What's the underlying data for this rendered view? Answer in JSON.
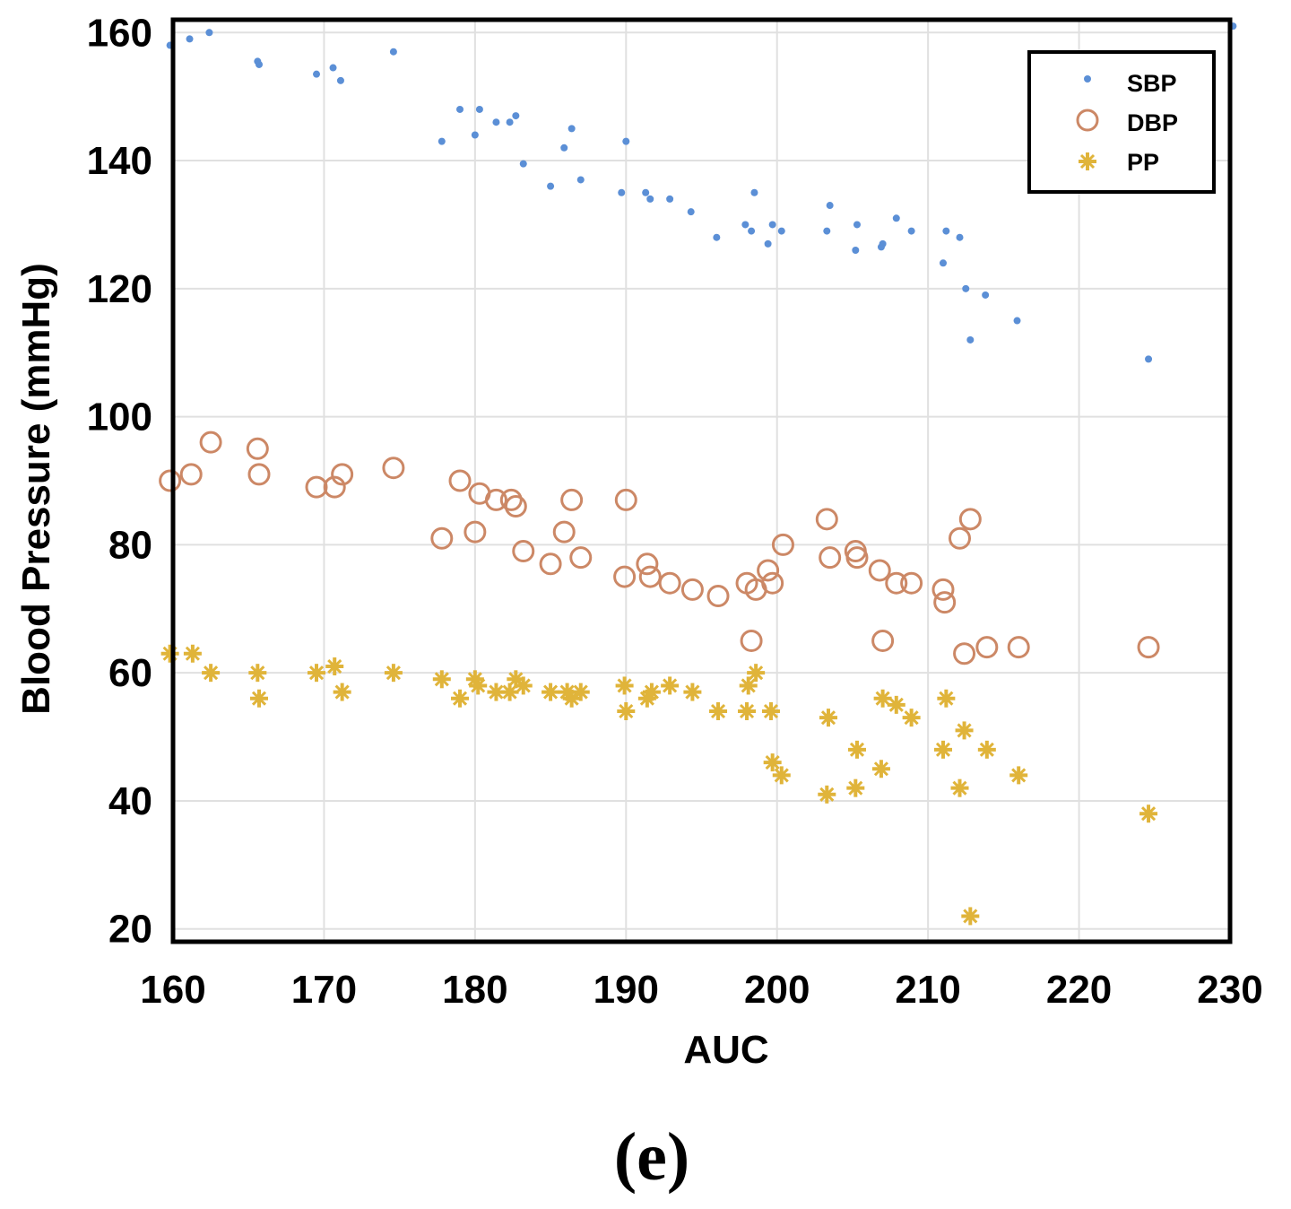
{
  "chart_data": {
    "type": "scatter",
    "title": "",
    "xlabel": "AUC",
    "ylabel": "Blood Pressure (mmHg)",
    "xlim": [
      160,
      230
    ],
    "ylim": [
      18,
      162
    ],
    "xticks": [
      160,
      170,
      180,
      190,
      200,
      210,
      220,
      230
    ],
    "yticks": [
      20,
      40,
      60,
      80,
      100,
      120,
      140,
      160
    ],
    "grid": true,
    "legend_position": "top-right",
    "series": [
      {
        "name": "SBP",
        "marker": "dot",
        "color": "#5b8fd6",
        "points": [
          [
            159.8,
            158
          ],
          [
            161.1,
            159
          ],
          [
            162.4,
            160
          ],
          [
            165.6,
            155.5
          ],
          [
            165.7,
            155
          ],
          [
            169.5,
            153.5
          ],
          [
            170.6,
            154.5
          ],
          [
            171.1,
            152.5
          ],
          [
            174.6,
            157
          ],
          [
            177.8,
            143
          ],
          [
            179.0,
            148
          ],
          [
            180.0,
            144
          ],
          [
            180.3,
            148
          ],
          [
            181.4,
            146
          ],
          [
            182.3,
            146
          ],
          [
            182.7,
            147
          ],
          [
            183.2,
            139.5
          ],
          [
            185.0,
            136
          ],
          [
            185.9,
            142
          ],
          [
            186.4,
            145
          ],
          [
            187.0,
            137
          ],
          [
            189.7,
            135
          ],
          [
            190.0,
            143
          ],
          [
            191.3,
            135
          ],
          [
            191.6,
            134
          ],
          [
            192.9,
            134
          ],
          [
            194.3,
            132
          ],
          [
            196.0,
            128
          ],
          [
            197.9,
            130
          ],
          [
            198.3,
            129
          ],
          [
            198.5,
            135
          ],
          [
            199.4,
            127
          ],
          [
            199.7,
            130
          ],
          [
            200.3,
            129
          ],
          [
            203.3,
            129
          ],
          [
            203.5,
            133
          ],
          [
            205.2,
            126
          ],
          [
            205.3,
            130
          ],
          [
            206.9,
            126.5
          ],
          [
            207.0,
            127
          ],
          [
            207.9,
            131
          ],
          [
            208.9,
            129
          ],
          [
            211.0,
            124
          ],
          [
            211.2,
            129
          ],
          [
            212.1,
            128
          ],
          [
            212.5,
            120
          ],
          [
            212.8,
            112
          ],
          [
            213.8,
            119
          ],
          [
            215.9,
            115
          ],
          [
            224.6,
            109
          ],
          [
            230.2,
            161
          ]
        ]
      },
      {
        "name": "DBP",
        "marker": "circle",
        "color": "#cc8866",
        "points": [
          [
            159.8,
            90
          ],
          [
            161.2,
            91
          ],
          [
            162.5,
            96
          ],
          [
            165.6,
            95
          ],
          [
            165.7,
            91
          ],
          [
            169.5,
            89
          ],
          [
            170.7,
            89
          ],
          [
            171.2,
            91
          ],
          [
            174.6,
            92
          ],
          [
            177.8,
            81
          ],
          [
            179.0,
            90
          ],
          [
            180.0,
            82
          ],
          [
            180.3,
            88
          ],
          [
            181.4,
            87
          ],
          [
            182.4,
            87
          ],
          [
            182.7,
            86
          ],
          [
            183.2,
            79
          ],
          [
            185.0,
            77
          ],
          [
            185.9,
            82
          ],
          [
            186.4,
            87
          ],
          [
            187.0,
            78
          ],
          [
            189.9,
            75
          ],
          [
            190.0,
            87
          ],
          [
            191.4,
            77
          ],
          [
            191.6,
            75
          ],
          [
            192.9,
            74
          ],
          [
            194.4,
            73
          ],
          [
            196.1,
            72
          ],
          [
            198.0,
            74
          ],
          [
            198.3,
            65
          ],
          [
            198.6,
            73
          ],
          [
            199.4,
            76
          ],
          [
            199.7,
            74
          ],
          [
            200.4,
            80
          ],
          [
            203.3,
            84
          ],
          [
            203.5,
            78
          ],
          [
            205.2,
            79
          ],
          [
            205.3,
            78
          ],
          [
            206.8,
            76
          ],
          [
            207.0,
            65
          ],
          [
            207.9,
            74
          ],
          [
            208.9,
            74
          ],
          [
            211.0,
            73
          ],
          [
            211.1,
            71
          ],
          [
            212.1,
            81
          ],
          [
            212.4,
            63
          ],
          [
            212.8,
            84
          ],
          [
            213.9,
            64
          ],
          [
            216.0,
            64
          ],
          [
            224.6,
            64
          ]
        ]
      },
      {
        "name": "PP",
        "marker": "star",
        "color": "#e0b43a",
        "points": [
          [
            159.8,
            63
          ],
          [
            161.3,
            63
          ],
          [
            162.5,
            60
          ],
          [
            165.6,
            60
          ],
          [
            165.7,
            56
          ],
          [
            169.5,
            60
          ],
          [
            170.7,
            61
          ],
          [
            171.2,
            57
          ],
          [
            174.6,
            60
          ],
          [
            177.8,
            59
          ],
          [
            179.0,
            56
          ],
          [
            180.0,
            59
          ],
          [
            180.2,
            58
          ],
          [
            181.4,
            57
          ],
          [
            182.3,
            57
          ],
          [
            182.7,
            59
          ],
          [
            183.2,
            58
          ],
          [
            185.0,
            57
          ],
          [
            186.1,
            57
          ],
          [
            186.4,
            56
          ],
          [
            187.0,
            57
          ],
          [
            189.9,
            58
          ],
          [
            190.0,
            54
          ],
          [
            191.4,
            56
          ],
          [
            191.7,
            57
          ],
          [
            192.9,
            58
          ],
          [
            194.4,
            57
          ],
          [
            196.1,
            54
          ],
          [
            198.0,
            54
          ],
          [
            198.1,
            58
          ],
          [
            198.6,
            60
          ],
          [
            199.6,
            54
          ],
          [
            199.7,
            46
          ],
          [
            200.3,
            44
          ],
          [
            203.3,
            41
          ],
          [
            203.4,
            53
          ],
          [
            205.2,
            42
          ],
          [
            205.3,
            48
          ],
          [
            206.9,
            45
          ],
          [
            207.0,
            56
          ],
          [
            207.9,
            55
          ],
          [
            208.9,
            53
          ],
          [
            211.0,
            48
          ],
          [
            211.2,
            56
          ],
          [
            212.1,
            42
          ],
          [
            212.4,
            51
          ],
          [
            212.8,
            22
          ],
          [
            213.9,
            48
          ],
          [
            216.0,
            44
          ],
          [
            224.6,
            38
          ]
        ]
      }
    ]
  },
  "caption": "(e)"
}
